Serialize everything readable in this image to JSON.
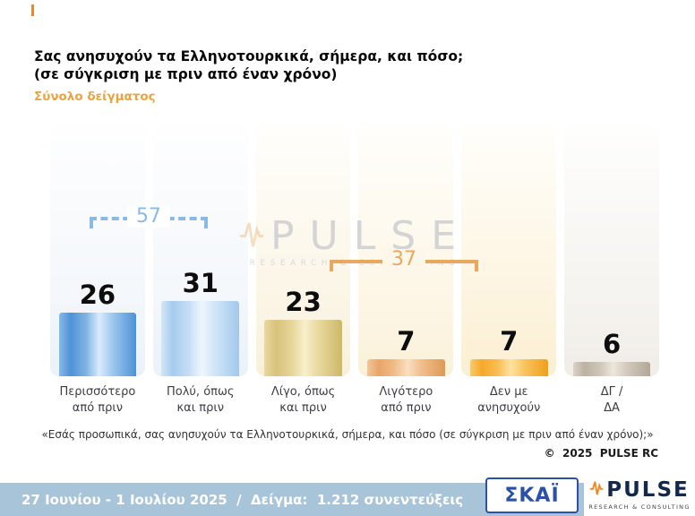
{
  "header": {
    "title_line1": "Σας ανησυχούν τα Ελληνοτουρκικά, σήμερα, και πόσο;",
    "title_line2": "(σε σύγκριση με πριν από έναν χρόνο)",
    "subtitle": "Σύνολο δείγματος"
  },
  "chart_data": {
    "type": "bar",
    "title": "Σας ανησυχούν τα Ελληνοτουρκικά, σήμερα, και πόσο; (σε σύγκριση με πριν από έναν χρόνο) — Σύνολο δείγματος",
    "categories": [
      {
        "line1": "Περισσότερο",
        "line2": "από πριν"
      },
      {
        "line1": "Πολύ, όπως",
        "line2": "και πριν"
      },
      {
        "line1": "Λίγο, όπως",
        "line2": "και πριν"
      },
      {
        "line1": "Λιγότερο",
        "line2": "από πριν"
      },
      {
        "line1": "Δεν με",
        "line2": "ανησυχούν"
      },
      {
        "line1": "ΔΓ /",
        "line2": "ΔΑ"
      }
    ],
    "values": [
      26,
      31,
      23,
      7,
      7,
      6
    ],
    "bar_colors": [
      "#5b9bd5",
      "#a9cdef",
      "#d9c47e",
      "#e8a566",
      "#f4a92c",
      "#bdb2a2"
    ],
    "group_totals": [
      {
        "value": "57",
        "bars": [
          1,
          2
        ],
        "color": "#8cb8e6"
      },
      {
        "value": "37",
        "bars": [
          3,
          4,
          5
        ],
        "color": "#e9a85f"
      }
    ],
    "ylim": [
      0,
      100
    ],
    "legend": "none",
    "grid": false
  },
  "watermark": {
    "brand": "PULSE",
    "tagline": "RESEARCH & CONSULTING"
  },
  "source": {
    "quote": "«Εσάς προσωπικά, σας ανησυχούν τα Ελληνοτουρκικά, σήμερα, και πόσο (σε σύγκριση με πριν από έναν χρόνο);»",
    "copyright": "©  2025  PULSE RC"
  },
  "footer": {
    "fieldwork": "27 Ιουνίου - 1 Ιουλίου 2025  /  Δείγμα:  1.212 συνεντεύξεις",
    "skai_logo": "ΣΚΑΪ",
    "pulse_logo": "PULSE",
    "pulse_tagline": "RESEARCH & CONSULTING"
  }
}
